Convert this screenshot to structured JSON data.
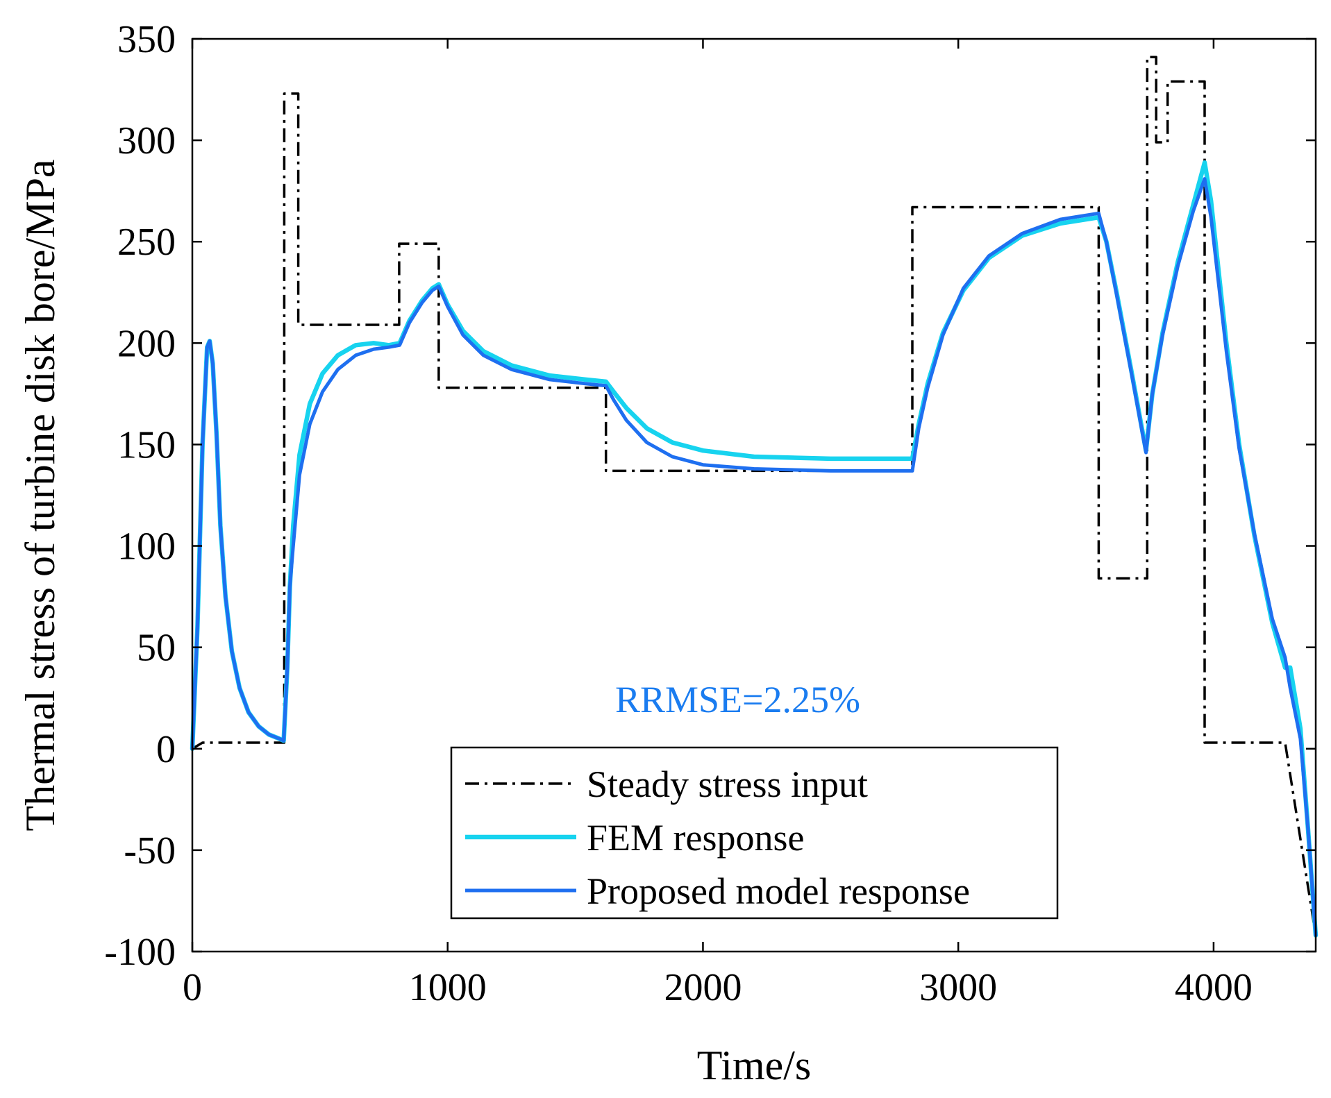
{
  "chart_data": {
    "type": "line",
    "title": "",
    "xlabel": "Time/s",
    "ylabel": "Thermal stress of turbine disk bore/MPa",
    "xlim": [
      0,
      4400
    ],
    "ylim": [
      -100,
      350
    ],
    "xticks": [
      0,
      1000,
      2000,
      3000,
      4000
    ],
    "xtick_labels": [
      "0",
      "1000",
      "2000",
      "3000",
      "4000"
    ],
    "yticks": [
      -100,
      -50,
      0,
      50,
      100,
      150,
      200,
      250,
      300,
      350
    ],
    "ytick_labels": [
      "-100",
      "-50",
      "0",
      "50",
      "100",
      "150",
      "200",
      "250",
      "300",
      "350"
    ],
    "grid": false,
    "legend_position": "bottom-center",
    "annotation": {
      "text": "RRMSE=2.25%",
      "x": 2000,
      "y": 18,
      "color": "#1a7cf0"
    },
    "series": [
      {
        "name": "Steady stress input",
        "style": "dashdot",
        "color": "#000000",
        "x": [
          0,
          40,
          360,
          360,
          415,
          415,
          810,
          810,
          965,
          965,
          1620,
          1620,
          2820,
          2820,
          3550,
          3550,
          3740,
          3740,
          3775,
          3775,
          3820,
          3820,
          3965,
          3965,
          4280,
          4400
        ],
        "y": [
          0,
          3,
          3,
          323,
          323,
          209,
          209,
          249,
          249,
          178,
          178,
          137,
          137,
          267,
          267,
          84,
          84,
          341,
          341,
          299,
          299,
          329,
          329,
          3,
          3,
          -92
        ]
      },
      {
        "name": "FEM response",
        "style": "solid",
        "color": "#17d3ef",
        "x": [
          0,
          20,
          40,
          58,
          68,
          80,
          95,
          110,
          130,
          155,
          185,
          220,
          260,
          300,
          340,
          358,
          372,
          382,
          395,
          420,
          460,
          510,
          570,
          640,
          710,
          770,
          812,
          850,
          900,
          940,
          965,
          1000,
          1060,
          1140,
          1250,
          1400,
          1540,
          1620,
          1650,
          1700,
          1780,
          1880,
          2000,
          2200,
          2500,
          2820,
          2845,
          2880,
          2940,
          3020,
          3120,
          3250,
          3400,
          3550,
          3580,
          3620,
          3680,
          3735,
          3760,
          3800,
          3860,
          3920,
          3965,
          3990,
          4050,
          4100,
          4160,
          4230,
          4280,
          4300,
          4340,
          4370,
          4400
        ],
        "y": [
          0,
          60,
          150,
          198,
          201,
          190,
          155,
          110,
          75,
          48,
          30,
          18,
          11,
          7,
          5,
          4,
          40,
          80,
          110,
          145,
          170,
          185,
          194,
          199,
          200,
          199,
          200,
          211,
          221,
          227,
          229,
          219,
          206,
          196,
          189,
          184,
          182,
          181,
          176,
          168,
          158,
          151,
          147,
          144,
          143,
          143,
          160,
          180,
          205,
          226,
          242,
          253,
          259,
          262,
          250,
          225,
          185,
          147,
          175,
          205,
          240,
          268,
          289,
          270,
          200,
          150,
          105,
          62,
          40,
          40,
          10,
          -40,
          -92
        ]
      },
      {
        "name": "Proposed model response",
        "style": "solid",
        "color": "#1e6ff0",
        "x": [
          0,
          20,
          40,
          58,
          68,
          80,
          95,
          110,
          130,
          155,
          185,
          220,
          260,
          300,
          340,
          358,
          372,
          382,
          395,
          420,
          460,
          510,
          570,
          640,
          710,
          770,
          812,
          850,
          900,
          940,
          965,
          1000,
          1060,
          1140,
          1250,
          1400,
          1540,
          1620,
          1650,
          1700,
          1780,
          1880,
          2000,
          2200,
          2500,
          2820,
          2845,
          2880,
          2940,
          3020,
          3120,
          3250,
          3400,
          3550,
          3580,
          3620,
          3680,
          3735,
          3760,
          3800,
          3860,
          3920,
          3965,
          3990,
          4050,
          4100,
          4160,
          4230,
          4280,
          4300,
          4340,
          4370,
          4400
        ],
        "y": [
          0,
          60,
          150,
          198,
          201,
          190,
          155,
          110,
          75,
          48,
          30,
          18,
          11,
          7,
          5,
          4,
          40,
          80,
          100,
          135,
          160,
          176,
          187,
          194,
          197,
          198,
          199,
          210,
          220,
          226,
          228,
          218,
          204,
          194,
          187,
          182,
          180,
          179,
          172,
          162,
          151,
          144,
          140,
          138,
          137,
          137,
          158,
          178,
          204,
          227,
          243,
          254,
          261,
          264,
          250,
          224,
          184,
          146,
          175,
          204,
          238,
          265,
          281,
          262,
          196,
          148,
          106,
          64,
          45,
          30,
          5,
          -40,
          -92
        ]
      }
    ]
  }
}
